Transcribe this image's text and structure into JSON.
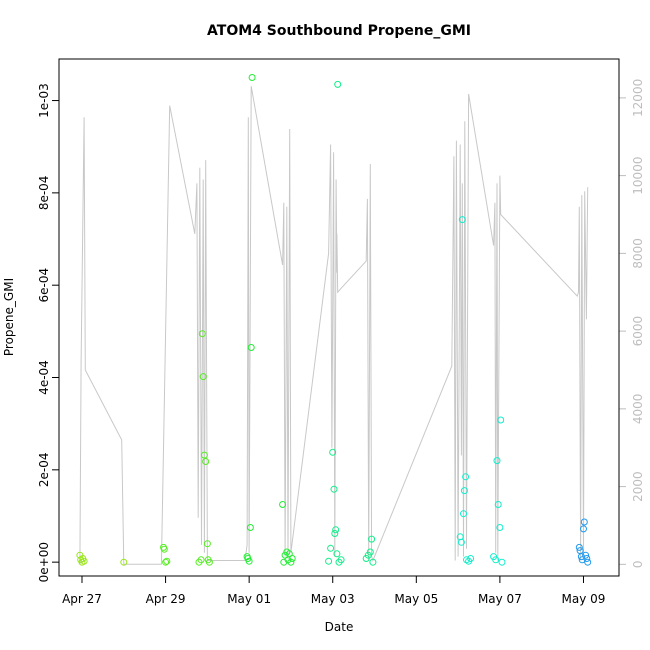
{
  "chart_data": {
    "type": "scatter",
    "title": "ATOM4 Southbound Propene_GMI",
    "xlabel": "Date",
    "ylabel": "Propene_GMI",
    "x_ticks": [
      {
        "label": "Apr 27",
        "day": 0
      },
      {
        "label": "Apr 29",
        "day": 2
      },
      {
        "label": "May 01",
        "day": 4
      },
      {
        "label": "May 03",
        "day": 6
      },
      {
        "label": "May 05",
        "day": 8
      },
      {
        "label": "May 07",
        "day": 10
      },
      {
        "label": "May 09",
        "day": 12
      }
    ],
    "xlim_days": [
      -0.55,
      12.85
    ],
    "ylim": [
      -3e-05,
      0.00109
    ],
    "y_ticks": [
      {
        "label": "0e+00",
        "value": 0
      },
      {
        "label": "2e-04",
        "value": 0.0002
      },
      {
        "label": "4e-04",
        "value": 0.0004
      },
      {
        "label": "6e-04",
        "value": 0.0006
      },
      {
        "label": "8e-04",
        "value": 0.0008
      },
      {
        "label": "1e-03",
        "value": 0.001
      }
    ],
    "y2lim": [
      -300,
      13000
    ],
    "y2_ticks": [
      0,
      2000,
      4000,
      6000,
      8000,
      10000,
      12000
    ],
    "grid": false,
    "series": [
      {
        "color": "#99e61a",
        "points": [
          [
            -0.05,
            1.5e-05
          ],
          [
            -0.03,
            5e-06
          ],
          [
            0,
            0
          ],
          [
            0.02,
            8e-06
          ],
          [
            0.05,
            2e-06
          ],
          [
            1,
            0
          ]
        ]
      },
      {
        "color": "#55ee22",
        "points": [
          [
            1.95,
            3.2e-05
          ],
          [
            1.97,
            2.8e-05
          ],
          [
            2,
            0
          ],
          [
            2.03,
            2e-06
          ],
          [
            2.8,
            0
          ],
          [
            2.85,
            5e-06
          ],
          [
            2.88,
            0.000495
          ],
          [
            2.9,
            0.000402
          ],
          [
            2.93,
            0.000232
          ],
          [
            2.96,
            0.000218
          ],
          [
            3,
            4e-05
          ],
          [
            3.02,
            5e-06
          ],
          [
            3.05,
            0
          ]
        ]
      },
      {
        "color": "#22ee33",
        "points": [
          [
            3.95,
            1.2e-05
          ],
          [
            3.97,
            8e-06
          ],
          [
            4,
            2e-06
          ],
          [
            4.03,
            7.5e-05
          ],
          [
            4.05,
            0.000465
          ],
          [
            4.07,
            0.00105
          ],
          [
            4.8,
            0.000125
          ],
          [
            4.83,
            0
          ],
          [
            4.86,
            1.5e-05
          ],
          [
            4.9,
            2.2e-05
          ],
          [
            4.93,
            5e-06
          ],
          [
            4.96,
            1.8e-05
          ],
          [
            5,
            0
          ],
          [
            5.03,
            8e-06
          ]
        ]
      },
      {
        "color": "#11ee88",
        "points": [
          [
            5.9,
            2e-06
          ],
          [
            5.95,
            3e-05
          ],
          [
            6,
            0.000238
          ],
          [
            6.03,
            0.000158
          ],
          [
            6.05,
            6.2e-05
          ],
          [
            6.07,
            7e-05
          ],
          [
            6.1,
            1.8e-05
          ],
          [
            6.12,
            0.001035
          ],
          [
            6.15,
            0
          ],
          [
            6.2,
            5e-06
          ],
          [
            6.8,
            8e-06
          ],
          [
            6.85,
            1.5e-05
          ],
          [
            6.9,
            2.2e-05
          ],
          [
            6.93,
            5e-05
          ],
          [
            6.96,
            0
          ]
        ]
      },
      {
        "color": "#11eecc",
        "points": [
          [
            9.05,
            5.5e-05
          ],
          [
            9.08,
            4.3e-05
          ],
          [
            9.1,
            0.000742
          ],
          [
            9.13,
            0.000105
          ],
          [
            9.15,
            0.000155
          ],
          [
            9.18,
            0.000185
          ],
          [
            9.2,
            5e-06
          ],
          [
            9.25,
            2e-06
          ],
          [
            9.3,
            8e-06
          ],
          [
            9.85,
            1.2e-05
          ],
          [
            9.9,
            5e-06
          ],
          [
            9.93,
            0.00022
          ],
          [
            9.96,
            0.000125
          ],
          [
            10,
            7.5e-05
          ],
          [
            10.02,
            0.000308
          ],
          [
            10.05,
            0
          ]
        ]
      },
      {
        "color": "#2299ee",
        "points": [
          [
            11.9,
            3.2e-05
          ],
          [
            11.92,
            2.5e-05
          ],
          [
            11.95,
            1.2e-05
          ],
          [
            11.97,
            5e-06
          ],
          [
            12,
            7.2e-05
          ],
          [
            12.02,
            8.7e-05
          ],
          [
            12.05,
            1.5e-05
          ],
          [
            12.08,
            8e-06
          ],
          [
            12.1,
            0
          ]
        ]
      }
    ],
    "secondary_line": {
      "color": "#c8c8c8",
      "points": [
        [
          -0.05,
          0
        ],
        [
          -0.02,
          5200
        ],
        [
          0.05,
          11500
        ],
        [
          0.08,
          5000
        ],
        [
          0.95,
          3200
        ],
        [
          1,
          0
        ],
        [
          1.9,
          0
        ],
        [
          2.1,
          11800
        ],
        [
          2.7,
          8500
        ],
        [
          2.75,
          9800
        ],
        [
          2.78,
          1200
        ],
        [
          2.82,
          10200
        ],
        [
          2.86,
          500
        ],
        [
          2.9,
          9900
        ],
        [
          2.93,
          300
        ],
        [
          2.96,
          10400
        ],
        [
          3,
          100
        ],
        [
          3.9,
          100
        ],
        [
          3.95,
          500
        ],
        [
          3.98,
          11500
        ],
        [
          4,
          300
        ],
        [
          4.05,
          12300
        ],
        [
          4.8,
          7700
        ],
        [
          4.83,
          9300
        ],
        [
          4.86,
          200
        ],
        [
          4.9,
          9200
        ],
        [
          4.93,
          150
        ],
        [
          4.97,
          11200
        ],
        [
          5,
          300
        ],
        [
          5.9,
          8000
        ],
        [
          5.95,
          10800
        ],
        [
          5.98,
          3000
        ],
        [
          6.02,
          10600
        ],
        [
          6.05,
          200
        ],
        [
          6.08,
          9900
        ],
        [
          6.1,
          7500
        ],
        [
          6.1,
          8500
        ],
        [
          6.12,
          7000
        ],
        [
          6.2,
          7100
        ],
        [
          6.8,
          7800
        ],
        [
          6.83,
          9400
        ],
        [
          6.86,
          100
        ],
        [
          6.9,
          10300
        ],
        [
          6.93,
          200
        ],
        [
          6.96,
          100
        ],
        [
          8.85,
          5100
        ],
        [
          8.9,
          10500
        ],
        [
          8.93,
          100
        ],
        [
          8.96,
          10900
        ],
        [
          9,
          200
        ],
        [
          9.05,
          10800
        ],
        [
          9.08,
          2800
        ],
        [
          9.1,
          9800
        ],
        [
          9.13,
          200
        ],
        [
          9.16,
          11400
        ],
        [
          9.2,
          400
        ],
        [
          9.25,
          12100
        ],
        [
          9.85,
          8200
        ],
        [
          9.88,
          9300
        ],
        [
          9.9,
          300
        ],
        [
          9.93,
          9800
        ],
        [
          9.95,
          100
        ],
        [
          10,
          10000
        ],
        [
          10.02,
          9000
        ],
        [
          11.85,
          6900
        ],
        [
          11.88,
          7000
        ],
        [
          11.9,
          9200
        ],
        [
          11.93,
          100
        ],
        [
          11.96,
          9500
        ],
        [
          12,
          200
        ],
        [
          12.03,
          9600
        ],
        [
          12.07,
          6300
        ],
        [
          12.1,
          9700
        ]
      ]
    }
  }
}
